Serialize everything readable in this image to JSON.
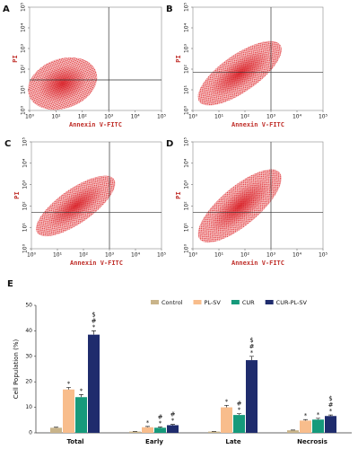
{
  "chart_data": [
    {
      "type": "scatter",
      "panel": "A",
      "xlabel": "Annexin V-FITC",
      "ylabel": "PI",
      "xscale": "log",
      "yscale": "log",
      "xlim": [
        1,
        100000
      ],
      "ylim": [
        1,
        100000
      ],
      "xticks": [
        {
          "value": 1,
          "label": "10⁰"
        },
        {
          "value": 10,
          "label": "10¹"
        },
        {
          "value": 100,
          "label": "10²"
        },
        {
          "value": 1000,
          "label": "10³"
        },
        {
          "value": 10000,
          "label": "10⁴"
        },
        {
          "value": 100000,
          "label": "10⁵"
        }
      ],
      "yticks": [
        {
          "value": 1,
          "label": "10⁰"
        },
        {
          "value": 10,
          "label": "10¹"
        },
        {
          "value": 100,
          "label": "10²"
        },
        {
          "value": 1000,
          "label": "10³"
        },
        {
          "value": 10000,
          "label": "10⁴"
        },
        {
          "value": 100000,
          "label": "10⁵"
        }
      ],
      "gate_x": 1000,
      "gate_y": 30,
      "color": "#e0252b"
    },
    {
      "type": "scatter",
      "panel": "B",
      "xlabel": "Annexin V-FITC",
      "ylabel": "PI",
      "xscale": "log",
      "yscale": "log",
      "xlim": [
        1,
        100000
      ],
      "ylim": [
        1,
        100000
      ],
      "xticks": [
        {
          "value": 1,
          "label": "10⁰"
        },
        {
          "value": 10,
          "label": "10¹"
        },
        {
          "value": 100,
          "label": "10²"
        },
        {
          "value": 1000,
          "label": "10³"
        },
        {
          "value": 10000,
          "label": "10⁴"
        },
        {
          "value": 100000,
          "label": "10⁵"
        }
      ],
      "yticks": [
        {
          "value": 1,
          "label": "10⁰"
        },
        {
          "value": 10,
          "label": "10¹"
        },
        {
          "value": 100,
          "label": "10²"
        },
        {
          "value": 1000,
          "label": "10³"
        },
        {
          "value": 10000,
          "label": "10⁴"
        },
        {
          "value": 100000,
          "label": "10⁵"
        }
      ],
      "gate_x": 1000,
      "gate_y": 70,
      "color": "#e0252b"
    },
    {
      "type": "scatter",
      "panel": "C",
      "xlabel": "Annexin V-FITC",
      "ylabel": "PI",
      "xscale": "log",
      "yscale": "log",
      "xlim": [
        1,
        100000
      ],
      "ylim": [
        1,
        100000
      ],
      "xticks": [
        {
          "value": 1,
          "label": "10⁰"
        },
        {
          "value": 10,
          "label": "10¹"
        },
        {
          "value": 100,
          "label": "10²"
        },
        {
          "value": 1000,
          "label": "10³"
        },
        {
          "value": 10000,
          "label": "10⁴"
        },
        {
          "value": 100000,
          "label": "10⁵"
        }
      ],
      "yticks": [
        {
          "value": 1,
          "label": "10⁰"
        },
        {
          "value": 10,
          "label": "10¹"
        },
        {
          "value": 100,
          "label": "10²"
        },
        {
          "value": 1000,
          "label": "10³"
        },
        {
          "value": 10000,
          "label": "10⁴"
        },
        {
          "value": 100000,
          "label": "10⁵"
        }
      ],
      "gate_x": 1000,
      "gate_y": 50,
      "color": "#e0252b"
    },
    {
      "type": "scatter",
      "panel": "D",
      "xlabel": "Annexin V-FITC",
      "ylabel": "PI",
      "xscale": "log",
      "yscale": "log",
      "xlim": [
        1,
        100000
      ],
      "ylim": [
        1,
        100000
      ],
      "xticks": [
        {
          "value": 1,
          "label": "10⁰"
        },
        {
          "value": 10,
          "label": "10¹"
        },
        {
          "value": 100,
          "label": "10²"
        },
        {
          "value": 1000,
          "label": "10³"
        },
        {
          "value": 10000,
          "label": "10⁴"
        },
        {
          "value": 100000,
          "label": "10⁵"
        }
      ],
      "yticks": [
        {
          "value": 1,
          "label": "10⁰"
        },
        {
          "value": 10,
          "label": "10¹"
        },
        {
          "value": 100,
          "label": "10²"
        },
        {
          "value": 1000,
          "label": "10³"
        },
        {
          "value": 10000,
          "label": "10⁴"
        },
        {
          "value": 100000,
          "label": "10⁵"
        }
      ],
      "gate_x": 1000,
      "gate_y": 50,
      "color": "#e0252b"
    },
    {
      "type": "bar",
      "panel": "E",
      "ylabel": "Cell Population (%)",
      "categories": [
        "Total",
        "Early",
        "Late",
        "Necrosis"
      ],
      "ylim": [
        0,
        50
      ],
      "yticks": [
        0,
        10,
        20,
        30,
        40,
        50
      ],
      "legend": "top-right",
      "series": [
        {
          "name": "Control",
          "color": "#c9b48a",
          "values": [
            2,
            0.5,
            0.5,
            1
          ],
          "errors": [
            0.2,
            0.1,
            0.1,
            0.1
          ]
        },
        {
          "name": "PL-SV",
          "color": "#f8bd8c",
          "values": [
            17,
            2.2,
            10,
            4.8
          ],
          "errors": [
            0.8,
            0.3,
            0.8,
            0.4
          ],
          "sig": [
            [
              "*"
            ],
            [
              "*"
            ],
            [
              "*"
            ],
            [
              "*"
            ]
          ]
        },
        {
          "name": "CUR",
          "color": "#169a7b",
          "values": [
            14,
            2,
            7,
            5.2
          ],
          "errors": [
            1,
            0.3,
            0.5,
            0.5
          ],
          "sig": [
            [
              "*"
            ],
            [
              "#",
              "*"
            ],
            [
              "#",
              "*"
            ],
            [
              "*"
            ]
          ]
        },
        {
          "name": "CUR-PL-SV",
          "color": "#1f2c6d",
          "values": [
            38.5,
            3,
            28.5,
            6.6
          ],
          "errors": [
            1.5,
            0.3,
            1.5,
            0.4
          ],
          "sig": [
            [
              "$",
              "#",
              "*"
            ],
            [
              "#",
              "*"
            ],
            [
              "$",
              "#",
              "*"
            ],
            [
              "$",
              "#",
              "*"
            ]
          ]
        }
      ]
    }
  ]
}
